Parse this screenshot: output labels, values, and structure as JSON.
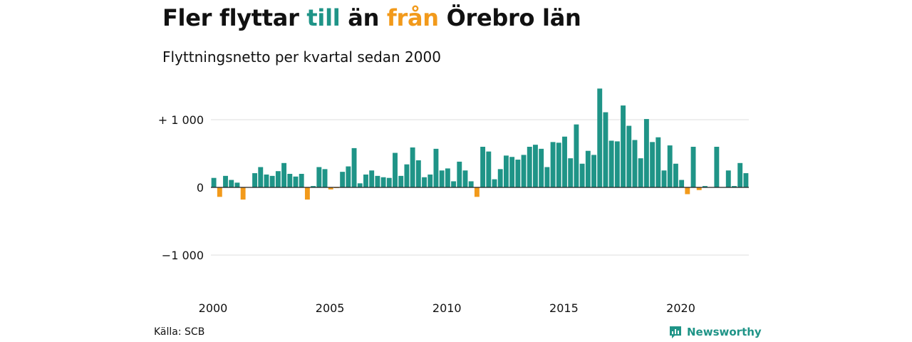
{
  "title": {
    "part1": "Fler flyttar ",
    "till": "till",
    "part2": " än ",
    "fran": "från",
    "part3": " Örebro län"
  },
  "subtitle": "Flyttningsnetto per kvartal sedan 2000",
  "source": "Källa: SCB",
  "logo": {
    "text": "Newsworthy",
    "icon": "newsworthy-chart-icon"
  },
  "colors": {
    "positive": "#1f9487",
    "negative": "#f29a1b",
    "grid": "#dddddd",
    "baseline": "#222222"
  },
  "chart_data": {
    "type": "bar",
    "x_start": "2000 Q1",
    "frequency": "quarterly",
    "xlabel": "",
    "ylabel": "",
    "ylim": [
      -1450,
      1450
    ],
    "y_ticks": [
      {
        "value": 1000,
        "label": "+ 1 000"
      },
      {
        "value": 0,
        "label": "0"
      },
      {
        "value": -1000,
        "label": "−1 000"
      }
    ],
    "x_ticks": [
      "2000",
      "2005",
      "2010",
      "2015",
      "2020"
    ],
    "values": [
      140,
      -140,
      170,
      110,
      70,
      -180,
      0,
      210,
      300,
      190,
      170,
      240,
      360,
      200,
      160,
      200,
      -180,
      20,
      300,
      270,
      -30,
      -10,
      230,
      310,
      580,
      60,
      190,
      250,
      170,
      150,
      140,
      510,
      170,
      340,
      590,
      400,
      150,
      190,
      570,
      250,
      280,
      90,
      380,
      250,
      90,
      -140,
      600,
      530,
      120,
      270,
      470,
      450,
      410,
      480,
      600,
      630,
      570,
      300,
      670,
      660,
      750,
      430,
      930,
      350,
      540,
      480,
      1460,
      1110,
      690,
      680,
      1210,
      910,
      700,
      430,
      1010,
      670,
      740,
      250,
      620,
      350,
      110,
      -100,
      600,
      -40,
      20,
      0,
      600,
      0,
      250,
      20,
      360,
      210
    ]
  }
}
